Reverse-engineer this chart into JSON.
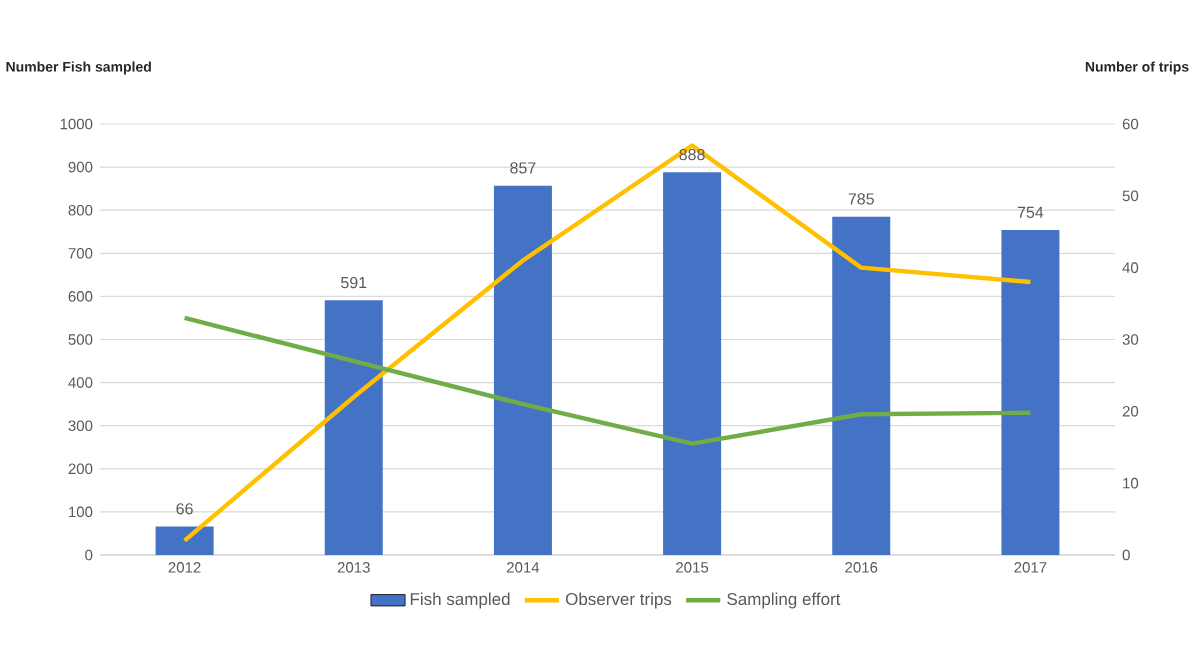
{
  "chart_data": {
    "type": "bar",
    "categories": [
      "2012",
      "2013",
      "2014",
      "2015",
      "2016",
      "2017"
    ],
    "ylabel": "Number Fish sampled",
    "y2label": "Number of trips",
    "series": [
      {
        "name": "Fish sampled",
        "color": "#4472c4",
        "values": [
          66,
          591,
          857,
          888,
          785,
          754
        ],
        "value_labels": [
          "66",
          "591",
          "857",
          "888",
          "785",
          "754"
        ]
      },
      {
        "name": "Observer trips",
        "type": "line",
        "axis": "y2",
        "color": "#ffc000",
        "values": [
          2,
          22,
          41,
          57,
          40,
          38
        ]
      },
      {
        "name": "Sampling effort",
        "type": "line",
        "axis": "y2",
        "color": "#70ad47",
        "values": [
          33,
          27,
          21,
          15.5,
          19.6,
          19.8
        ]
      }
    ],
    "ylim": [
      0,
      1000
    ],
    "yticks": [
      0,
      100,
      200,
      300,
      400,
      500,
      600,
      700,
      800,
      900,
      1000
    ],
    "y2lim": [
      0,
      60
    ],
    "y2ticks": [
      0,
      10,
      20,
      30,
      40,
      50,
      60
    ],
    "grid": "y",
    "legend": "bottom"
  }
}
